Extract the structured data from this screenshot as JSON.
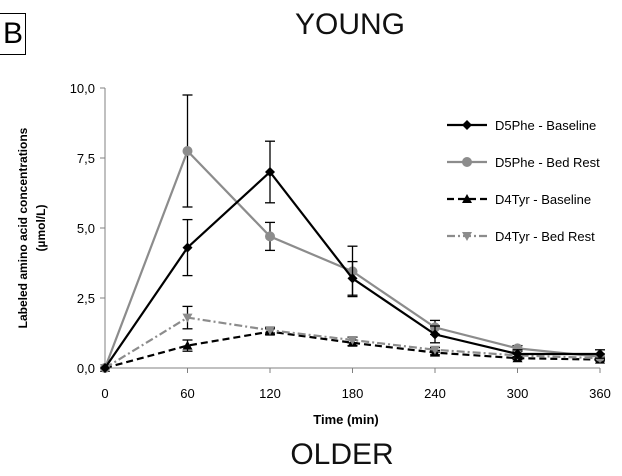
{
  "panel_label": "B",
  "top_heading": "YOUNG",
  "bottom_heading": "OLDER",
  "chart_data": {
    "type": "line",
    "title": "YOUNG",
    "xlabel": "Time (min)",
    "ylabel_line1": "Labeled amino acid concentrations",
    "ylabel_line2": "(µmol/L)",
    "x": [
      0,
      60,
      120,
      180,
      240,
      300,
      360
    ],
    "x_ticks": [
      "0",
      "60",
      "120",
      "180",
      "240",
      "300",
      "360"
    ],
    "xlim": [
      0,
      360
    ],
    "ylim": [
      0,
      10
    ],
    "y_ticks": [
      0,
      2.5,
      5,
      7.5,
      10
    ],
    "y_tick_labels": [
      "0,0",
      "2,5",
      "5,0",
      "7,5",
      "10,0"
    ],
    "grid": false,
    "legend_position": "right",
    "series": [
      {
        "name": "D5Phe - Baseline",
        "color": "#000000",
        "dash": "solid",
        "marker": "diamond",
        "values": [
          0.0,
          4.3,
          7.0,
          3.2,
          1.2,
          0.5,
          0.5
        ],
        "errors": [
          0.0,
          1.0,
          1.1,
          0.6,
          0.3,
          0.15,
          0.15
        ]
      },
      {
        "name": "D5Phe - Bed Rest",
        "color": "#8c8c8c",
        "dash": "solid",
        "marker": "circle",
        "values": [
          0.0,
          7.75,
          4.7,
          3.45,
          1.45,
          0.7,
          0.4
        ],
        "errors": [
          0.0,
          2.0,
          0.5,
          0.9,
          0.25,
          0.1,
          0.1
        ]
      },
      {
        "name": "D4Tyr - Baseline",
        "color": "#000000",
        "dash": "dash",
        "marker": "triangle",
        "values": [
          0.0,
          0.8,
          1.3,
          0.9,
          0.55,
          0.35,
          0.3
        ],
        "errors": [
          0.0,
          0.2,
          0.1,
          0.1,
          0.08,
          0.05,
          0.05
        ]
      },
      {
        "name": "D4Tyr - Bed Rest",
        "color": "#8c8c8c",
        "dash": "dashdot",
        "marker": "triangle-down",
        "values": [
          0.0,
          1.8,
          1.35,
          1.0,
          0.65,
          0.45,
          0.35
        ],
        "errors": [
          0.0,
          0.4,
          0.1,
          0.1,
          0.08,
          0.05,
          0.05
        ]
      }
    ]
  }
}
